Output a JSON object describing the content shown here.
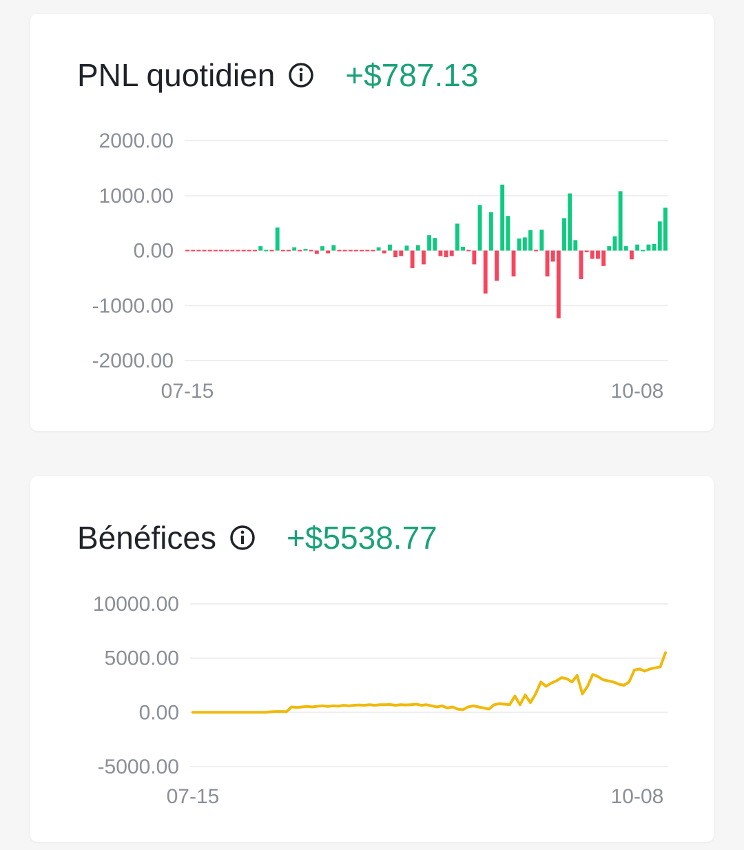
{
  "colors": {
    "positive": "#0ecb81",
    "negative": "#f6465d",
    "line": "#f0b90b",
    "grid": "#eeeeee",
    "value_text": "#1aa179"
  },
  "pnl_card": {
    "title": "PNL quotidien",
    "value": "+$787.13",
    "info_icon": "info-circle-icon"
  },
  "profit_card": {
    "title": "Bénéfices",
    "value": "+$5538.77",
    "info_icon": "info-circle-icon"
  },
  "chart_data": [
    {
      "type": "bar",
      "title": "PNL quotidien",
      "ylim": [
        -2000,
        2000
      ],
      "yticks": [
        "2000.00",
        "1000.00",
        "0.00",
        "-1000.00",
        "-2000.00"
      ],
      "yticks_values": [
        2000,
        1000,
        0,
        -1000,
        -2000
      ],
      "xticks": [
        "07-15",
        "10-08"
      ],
      "grid": true,
      "values": [
        -10,
        -10,
        -10,
        -10,
        -10,
        -10,
        -10,
        -10,
        -10,
        -10,
        -10,
        -10,
        -10,
        80,
        0,
        -10,
        420,
        -20,
        -10,
        60,
        -20,
        30,
        -20,
        -60,
        80,
        -50,
        100,
        -10,
        -10,
        -10,
        -10,
        -10,
        -10,
        -10,
        60,
        -50,
        110,
        -120,
        -100,
        90,
        -320,
        100,
        -250,
        280,
        230,
        -100,
        -120,
        -100,
        490,
        70,
        -10,
        -250,
        830,
        -780,
        700,
        -550,
        1200,
        630,
        -470,
        220,
        240,
        370,
        -10,
        380,
        -470,
        -200,
        -1230,
        590,
        1040,
        190,
        -520,
        -30,
        -150,
        -150,
        -280,
        80,
        260,
        1080,
        80,
        -160,
        110,
        0,
        110,
        120,
        530,
        780
      ]
    },
    {
      "type": "line",
      "title": "Bénéfices",
      "ylim": [
        -5000,
        10000
      ],
      "yticks": [
        "10000.00",
        "5000.00",
        "0.00",
        "-5000.00"
      ],
      "yticks_values": [
        10000,
        5000,
        0,
        -5000
      ],
      "xticks": [
        "07-15",
        "10-08"
      ],
      "grid": true,
      "values": [
        0,
        0,
        0,
        0,
        0,
        0,
        0,
        0,
        0,
        0,
        0,
        0,
        0,
        0,
        0,
        50,
        80,
        80,
        60,
        500,
        450,
        500,
        550,
        500,
        560,
        600,
        550,
        600,
        570,
        650,
        600,
        650,
        680,
        650,
        700,
        650,
        700,
        700,
        720,
        650,
        700,
        680,
        700,
        750,
        650,
        700,
        600,
        500,
        600,
        400,
        500,
        300,
        250,
        500,
        600,
        500,
        400,
        300,
        700,
        800,
        750,
        700,
        1500,
        700,
        1600,
        900,
        1700,
        2800,
        2400,
        2700,
        2900,
        3200,
        3100,
        2800,
        3400,
        1700,
        2400,
        3500,
        3300,
        3000,
        2900,
        2800,
        2600,
        2500,
        2800,
        3900,
        4000,
        3800,
        4000,
        4100,
        4200,
        5500
      ]
    }
  ]
}
